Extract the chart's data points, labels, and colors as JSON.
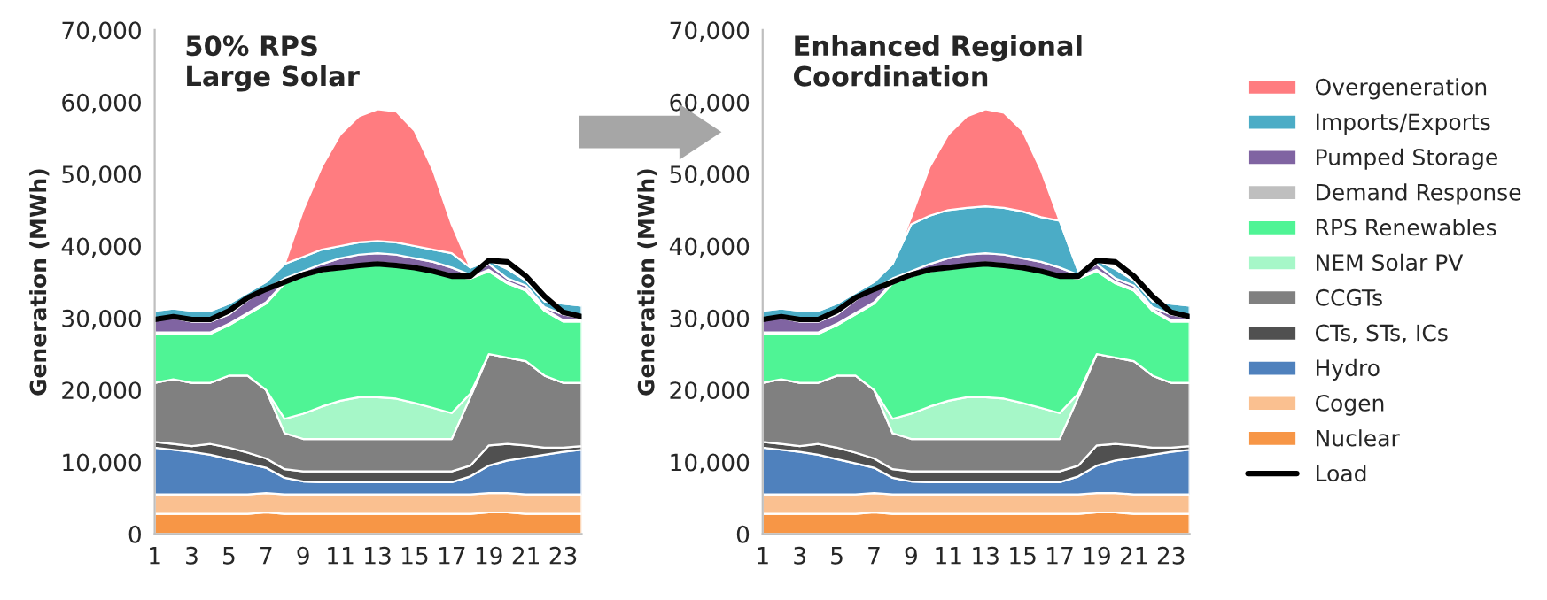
{
  "chart_data": [
    {
      "type": "area",
      "stacked": true,
      "title": "50% RPS\nLarge Solar",
      "ylabel": "Generation (MWh)",
      "x": [
        1,
        2,
        3,
        4,
        5,
        6,
        7,
        8,
        9,
        10,
        11,
        12,
        13,
        14,
        15,
        16,
        17,
        18,
        19,
        20,
        21,
        22,
        23,
        24
      ],
      "xlim": [
        1,
        24
      ],
      "xticks": [
        1,
        3,
        5,
        7,
        9,
        11,
        13,
        15,
        17,
        19,
        21,
        23
      ],
      "ylim": [
        0,
        70000
      ],
      "yticks": [
        {
          "value": 0,
          "label": "0"
        },
        {
          "value": 10000,
          "label": "10,000"
        },
        {
          "value": 20000,
          "label": "20,000"
        },
        {
          "value": 30000,
          "label": "30,000"
        },
        {
          "value": 40000,
          "label": "40,000"
        },
        {
          "value": 50000,
          "label": "50,000"
        },
        {
          "value": 60000,
          "label": "60,000"
        },
        {
          "value": 70000,
          "label": "70,000"
        }
      ],
      "grid": false,
      "legend": false,
      "series": [
        {
          "color": "#f79646",
          "values": [
            2800,
            2800,
            2800,
            2800,
            2800,
            2800,
            3000,
            2800,
            2800,
            2800,
            2800,
            2800,
            2800,
            2800,
            2800,
            2800,
            2800,
            2800,
            3000,
            3000,
            2800,
            2800,
            2800,
            2800
          ]
        },
        {
          "color": "#fac090",
          "values": [
            2700,
            2700,
            2700,
            2700,
            2700,
            2700,
            2700,
            2700,
            2700,
            2700,
            2700,
            2700,
            2700,
            2700,
            2700,
            2700,
            2700,
            2700,
            2700,
            2700,
            2700,
            2700,
            2700,
            2700
          ]
        },
        {
          "color": "#4f81bd",
          "values": [
            6500,
            6200,
            5900,
            5500,
            4900,
            4300,
            3500,
            2300,
            1800,
            1700,
            1700,
            1700,
            1700,
            1700,
            1700,
            1700,
            1700,
            2500,
            3800,
            4500,
            5100,
            5500,
            5900,
            6200
          ]
        },
        {
          "color": "#505050",
          "values": [
            800,
            800,
            800,
            1500,
            1600,
            1500,
            1300,
            1200,
            1400,
            1500,
            1500,
            1500,
            1500,
            1500,
            1500,
            1500,
            1500,
            1500,
            2800,
            2300,
            1700,
            1000,
            600,
            500
          ]
        },
        {
          "color": "#808080",
          "values": [
            8200,
            9000,
            8800,
            8500,
            10000,
            10700,
            9500,
            5000,
            4500,
            4500,
            4500,
            4500,
            4500,
            4500,
            4500,
            4500,
            4500,
            9500,
            12700,
            12000,
            11700,
            10000,
            9000,
            8800
          ]
        },
        {
          "color": "#a6f7c8",
          "values": [
            0,
            0,
            0,
            0,
            0,
            0,
            0,
            2000,
            3500,
            4500,
            5300,
            5800,
            5800,
            5600,
            5000,
            4300,
            3600,
            500,
            0,
            0,
            0,
            0,
            0,
            0
          ]
        },
        {
          "color": "#4ff495",
          "values": [
            6800,
            6300,
            6800,
            6800,
            7000,
            8500,
            12000,
            18800,
            19100,
            18800,
            18300,
            18200,
            18500,
            18500,
            18800,
            19000,
            19000,
            16000,
            11500,
            10300,
            9800,
            9000,
            8500,
            8500
          ]
        },
        {
          "color": "#bfbfbf",
          "values": [
            200,
            200,
            200,
            200,
            200,
            200,
            200,
            200,
            200,
            200,
            200,
            200,
            200,
            200,
            200,
            200,
            200,
            200,
            200,
            200,
            200,
            200,
            200,
            200
          ]
        },
        {
          "color": "#8064a2",
          "values": [
            2000,
            2000,
            1500,
            1500,
            1300,
            1800,
            1800,
            500,
            500,
            800,
            1300,
            1400,
            1300,
            1300,
            1100,
            1100,
            1000,
            300,
            800,
            500,
            500,
            300,
            800,
            300
          ]
        },
        {
          "color": "#4bacc6",
          "values": [
            1000,
            1300,
            1500,
            1500,
            1500,
            1000,
            1000,
            2000,
            2000,
            2000,
            1700,
            1700,
            1700,
            1700,
            1700,
            1700,
            2000,
            1000,
            500,
            1300,
            700,
            800,
            1500,
            1700
          ]
        },
        {
          "color": "#ff7c80",
          "values": [
            0,
            0,
            0,
            0,
            0,
            0,
            0,
            0,
            6500,
            11500,
            15500,
            17500,
            18300,
            18200,
            16000,
            11000,
            4000,
            0,
            0,
            0,
            0,
            0,
            0,
            0
          ]
        },
        {
          "type": "line",
          "color": "#000000",
          "values": [
            29800,
            30200,
            29800,
            29800,
            31000,
            32800,
            34000,
            35000,
            36000,
            36700,
            37000,
            37300,
            37500,
            37300,
            37000,
            36500,
            35800,
            35800,
            38000,
            37800,
            35800,
            33000,
            30800,
            30200
          ]
        }
      ]
    },
    {
      "type": "area",
      "stacked": true,
      "title": "Enhanced Regional\nCoordination",
      "ylabel": "Generation (MWh)",
      "x": [
        1,
        2,
        3,
        4,
        5,
        6,
        7,
        8,
        9,
        10,
        11,
        12,
        13,
        14,
        15,
        16,
        17,
        18,
        19,
        20,
        21,
        22,
        23,
        24
      ],
      "xlim": [
        1,
        24
      ],
      "xticks": [
        1,
        3,
        5,
        7,
        9,
        11,
        13,
        15,
        17,
        19,
        21,
        23
      ],
      "ylim": [
        0,
        70000
      ],
      "yticks": [
        {
          "value": 0,
          "label": "0"
        },
        {
          "value": 10000,
          "label": "10,000"
        },
        {
          "value": 20000,
          "label": "20,000"
        },
        {
          "value": 30000,
          "label": "30,000"
        },
        {
          "value": 40000,
          "label": "40,000"
        },
        {
          "value": 50000,
          "label": "50,000"
        },
        {
          "value": 60000,
          "label": "60,000"
        },
        {
          "value": 70000,
          "label": "70,000"
        }
      ],
      "grid": false,
      "legend": "right",
      "series": [
        {
          "name": "Nuclear",
          "color": "#f79646",
          "values": [
            2800,
            2800,
            2800,
            2800,
            2800,
            2800,
            3000,
            2800,
            2800,
            2800,
            2800,
            2800,
            2800,
            2800,
            2800,
            2800,
            2800,
            2800,
            3000,
            3000,
            2800,
            2800,
            2800,
            2800
          ]
        },
        {
          "name": "Cogen",
          "color": "#fac090",
          "values": [
            2700,
            2700,
            2700,
            2700,
            2700,
            2700,
            2700,
            2700,
            2700,
            2700,
            2700,
            2700,
            2700,
            2700,
            2700,
            2700,
            2700,
            2700,
            2700,
            2700,
            2700,
            2700,
            2700,
            2700
          ]
        },
        {
          "name": "Hydro",
          "color": "#4f81bd",
          "values": [
            6500,
            6200,
            5900,
            5500,
            4900,
            4300,
            3500,
            2300,
            1800,
            1700,
            1700,
            1700,
            1700,
            1700,
            1700,
            1700,
            1700,
            2500,
            3800,
            4500,
            5100,
            5500,
            5900,
            6200
          ]
        },
        {
          "name": "CTs, STs, ICs",
          "color": "#505050",
          "values": [
            800,
            800,
            800,
            1500,
            1600,
            1500,
            1300,
            1200,
            1400,
            1500,
            1500,
            1500,
            1500,
            1500,
            1500,
            1500,
            1500,
            1500,
            2800,
            2300,
            1700,
            1000,
            600,
            500
          ]
        },
        {
          "name": "CCGTs",
          "color": "#808080",
          "values": [
            8200,
            9000,
            8800,
            8500,
            10000,
            10700,
            9500,
            5000,
            4500,
            4500,
            4500,
            4500,
            4500,
            4500,
            4500,
            4500,
            4500,
            9500,
            12700,
            12000,
            11700,
            10000,
            9000,
            8800
          ]
        },
        {
          "name": "NEM Solar PV",
          "color": "#a6f7c8",
          "values": [
            0,
            0,
            0,
            0,
            0,
            0,
            0,
            2000,
            3500,
            4500,
            5300,
            5800,
            5800,
            5600,
            5000,
            4300,
            3600,
            500,
            0,
            0,
            0,
            0,
            0,
            0
          ]
        },
        {
          "name": "RPS Renewables",
          "color": "#4ff495",
          "values": [
            6800,
            6300,
            6800,
            6800,
            7000,
            8500,
            12000,
            18800,
            19100,
            18800,
            18300,
            18200,
            18500,
            18500,
            18800,
            19000,
            19000,
            16000,
            11500,
            10300,
            9800,
            9000,
            8500,
            8500
          ]
        },
        {
          "name": "Demand Response",
          "color": "#bfbfbf",
          "values": [
            200,
            200,
            200,
            200,
            200,
            200,
            200,
            200,
            200,
            200,
            200,
            200,
            200,
            200,
            200,
            200,
            200,
            200,
            200,
            200,
            200,
            200,
            200,
            200
          ]
        },
        {
          "name": "Pumped Storage",
          "color": "#8064a2",
          "values": [
            2000,
            2000,
            1500,
            1500,
            1300,
            1800,
            1800,
            500,
            500,
            800,
            1300,
            1400,
            1300,
            1300,
            1100,
            1100,
            1000,
            300,
            800,
            500,
            500,
            300,
            800,
            300
          ]
        },
        {
          "name": "Imports/Exports",
          "color": "#4bacc6",
          "values": [
            1000,
            1300,
            1500,
            1500,
            1500,
            1000,
            1000,
            2000,
            6500,
            6700,
            6700,
            6500,
            6500,
            6500,
            6500,
            6200,
            6500,
            500,
            500,
            1300,
            700,
            800,
            1500,
            1700
          ]
        },
        {
          "name": "Overgeneration",
          "color": "#ff7c80",
          "values": [
            0,
            0,
            0,
            0,
            0,
            0,
            0,
            0,
            1000,
            6800,
            10500,
            12700,
            13500,
            13200,
            11200,
            6500,
            0,
            0,
            0,
            0,
            0,
            0,
            0,
            0
          ]
        },
        {
          "name": "Load",
          "type": "line",
          "color": "#000000",
          "values": [
            29800,
            30200,
            29800,
            29800,
            31000,
            32800,
            34000,
            35000,
            36000,
            36700,
            37000,
            37300,
            37500,
            37300,
            37000,
            36500,
            35800,
            35800,
            38000,
            37800,
            35800,
            33000,
            30800,
            30200
          ]
        }
      ]
    }
  ]
}
